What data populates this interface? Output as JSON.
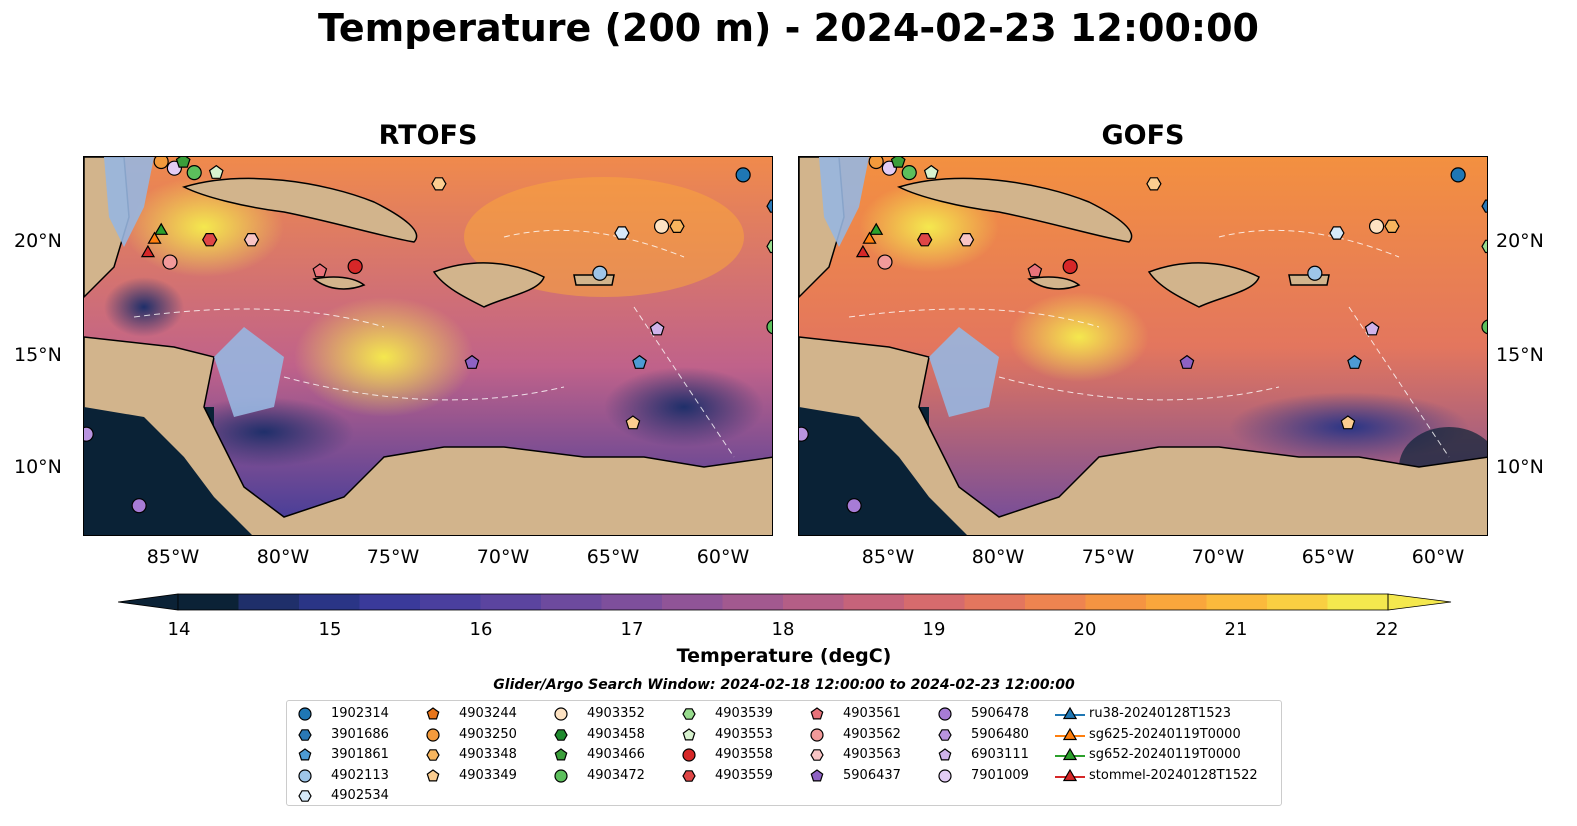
{
  "title": "Temperature (200 m) - 2024-02-23 12:00:00",
  "panels": [
    {
      "title": "RTOFS"
    },
    {
      "title": "GOFS"
    }
  ],
  "map_extent": {
    "lon": [
      -89.5,
      -58.2
    ],
    "lat": [
      7.0,
      24.0
    ]
  },
  "lat_ticks": [
    {
      "value": 20,
      "label": "20°N"
    },
    {
      "value": 15,
      "label": "15°N"
    },
    {
      "value": 10,
      "label": "10°N"
    }
  ],
  "lon_ticks": [
    {
      "value": -85,
      "label": "85°W"
    },
    {
      "value": -80,
      "label": "80°W"
    },
    {
      "value": -75,
      "label": "75°W"
    },
    {
      "value": -70,
      "label": "70°W"
    },
    {
      "value": -65,
      "label": "65°W"
    },
    {
      "value": -60,
      "label": "60°W"
    }
  ],
  "colors": {
    "land": "#d2b48c",
    "shelf": "#97b6e0",
    "deep_cold": "#0a2236",
    "warm": "#f7a040"
  },
  "colorbar": {
    "label": "Temperature (degC)",
    "min": 13.5,
    "max": 22.0,
    "ticks": [
      14,
      15,
      16,
      17,
      18,
      19,
      20,
      21,
      22
    ],
    "colors": [
      "#0b2236",
      "#162a4c",
      "#1f2f6a",
      "#2a3586",
      "#3a3a9a",
      "#4a3f9e",
      "#5b449f",
      "#6d4a9e",
      "#7e4f9c",
      "#905497",
      "#a2598f",
      "#b45e86",
      "#c6637a",
      "#d66b6d",
      "#e3765e",
      "#ee8450",
      "#f59442",
      "#f9a63c",
      "#fbba3c",
      "#f9cf42",
      "#f4e84e"
    ]
  },
  "legend": {
    "title": "Glider/Argo Search Window: 2024-02-18 12:00:00 to 2024-02-23 12:00:00",
    "columns": [
      [
        {
          "label": "1902314",
          "marker": "circle",
          "color": "#1f77b4"
        },
        {
          "label": "3901686",
          "marker": "hexagon",
          "color": "#2a78b6"
        },
        {
          "label": "3901861",
          "marker": "pentagon",
          "color": "#4d9bd4"
        },
        {
          "label": "4902113",
          "marker": "circle",
          "color": "#9ec5e8"
        },
        {
          "label": "4902534",
          "marker": "hexagon",
          "color": "#d6e9f8"
        }
      ],
      [
        {
          "label": "4903244",
          "marker": "pentagon",
          "color": "#e8751a"
        },
        {
          "label": "4903250",
          "marker": "circle",
          "color": "#f39a3c"
        },
        {
          "label": "4903348",
          "marker": "hexagon",
          "color": "#f7b55e"
        },
        {
          "label": "4903349",
          "marker": "pentagon",
          "color": "#fbcd90"
        }
      ],
      [
        {
          "label": "4903352",
          "marker": "circle",
          "color": "#fde2c2"
        },
        {
          "label": "4903458",
          "marker": "hexagon",
          "color": "#1f8a2e"
        },
        {
          "label": "4903466",
          "marker": "pentagon",
          "color": "#3a9e3a"
        },
        {
          "label": "4903472",
          "marker": "circle",
          "color": "#5cbf5c"
        }
      ],
      [
        {
          "label": "4903539",
          "marker": "hexagon",
          "color": "#98dc8e"
        },
        {
          "label": "4903553",
          "marker": "pentagon",
          "color": "#d8f2cf"
        },
        {
          "label": "4903558",
          "marker": "circle",
          "color": "#d62728"
        },
        {
          "label": "4903559",
          "marker": "hexagon",
          "color": "#df4646"
        }
      ],
      [
        {
          "label": "4903561",
          "marker": "pentagon",
          "color": "#e8727a"
        },
        {
          "label": "4903562",
          "marker": "circle",
          "color": "#f29a9a"
        },
        {
          "label": "4903563",
          "marker": "hexagon",
          "color": "#f8c4c4"
        },
        {
          "label": "5906437",
          "marker": "pentagon",
          "color": "#8e62c4"
        }
      ],
      [
        {
          "label": "5906478",
          "marker": "circle",
          "color": "#a77cd6"
        },
        {
          "label": "5906480",
          "marker": "hexagon",
          "color": "#b994e0"
        },
        {
          "label": "6903111",
          "marker": "pentagon",
          "color": "#cfb3ea"
        },
        {
          "label": "7901009",
          "marker": "circle",
          "color": "#e3cdf5"
        }
      ],
      [
        {
          "label": "ru38-20240128T1523",
          "marker": "triangle-line",
          "color": "#1f77b4"
        },
        {
          "label": "sg625-20240119T0000",
          "marker": "triangle-line",
          "color": "#ff7f0e"
        },
        {
          "label": "sg652-20240119T0000",
          "marker": "triangle-line",
          "color": "#2ca02c"
        },
        {
          "label": "stommel-20240128T1522",
          "marker": "triangle-line",
          "color": "#d62728"
        }
      ]
    ]
  },
  "map_markers": [
    {
      "lon": -86.0,
      "lat": 23.8,
      "marker": "circle",
      "color": "#f39a3c"
    },
    {
      "lon": -85.4,
      "lat": 23.5,
      "marker": "circle",
      "color": "#e3cdf5"
    },
    {
      "lon": -85.0,
      "lat": 23.8,
      "marker": "pentagon",
      "color": "#3a9e3a"
    },
    {
      "lon": -84.5,
      "lat": 23.3,
      "marker": "circle",
      "color": "#5cbf5c"
    },
    {
      "lon": -83.5,
      "lat": 23.3,
      "marker": "pentagon",
      "color": "#d8f2cf"
    },
    {
      "lon": -86.0,
      "lat": 20.7,
      "marker": "triangle",
      "color": "#2ca02c"
    },
    {
      "lon": -86.3,
      "lat": 20.3,
      "marker": "triangle",
      "color": "#ff7f0e"
    },
    {
      "lon": -86.6,
      "lat": 19.7,
      "marker": "triangle",
      "color": "#d62728"
    },
    {
      "lon": -85.6,
      "lat": 19.3,
      "marker": "circle",
      "color": "#f29a9a"
    },
    {
      "lon": -83.8,
      "lat": 20.3,
      "marker": "hexagon",
      "color": "#df4646"
    },
    {
      "lon": -81.9,
      "lat": 20.3,
      "marker": "hexagon",
      "color": "#f8c4c4"
    },
    {
      "lon": -78.8,
      "lat": 18.9,
      "marker": "pentagon",
      "color": "#e8727a"
    },
    {
      "lon": -77.2,
      "lat": 19.1,
      "marker": "circle",
      "color": "#d62728"
    },
    {
      "lon": -73.4,
      "lat": 22.8,
      "marker": "hexagon",
      "color": "#fbcd90"
    },
    {
      "lon": -65.1,
      "lat": 20.6,
      "marker": "hexagon",
      "color": "#d6e9f8"
    },
    {
      "lon": -63.3,
      "lat": 20.9,
      "marker": "circle",
      "color": "#fde2c2"
    },
    {
      "lon": -62.6,
      "lat": 20.9,
      "marker": "hexagon",
      "color": "#f7b55e"
    },
    {
      "lon": -59.6,
      "lat": 23.2,
      "marker": "circle",
      "color": "#1f77b4"
    },
    {
      "lon": -58.2,
      "lat": 21.8,
      "marker": "hexagon",
      "color": "#2a78b6"
    },
    {
      "lon": -58.2,
      "lat": 20.0,
      "marker": "hexagon",
      "color": "#98dc8e"
    },
    {
      "lon": -66.1,
      "lat": 18.8,
      "marker": "circle",
      "color": "#9ec5e8"
    },
    {
      "lon": -63.5,
      "lat": 16.3,
      "marker": "pentagon",
      "color": "#cfb3ea"
    },
    {
      "lon": -71.9,
      "lat": 14.8,
      "marker": "pentagon",
      "color": "#8e62c4"
    },
    {
      "lon": -64.3,
      "lat": 14.8,
      "marker": "pentagon",
      "color": "#4d9bd4"
    },
    {
      "lon": -58.2,
      "lat": 16.4,
      "marker": "circle",
      "color": "#5cbf5c"
    },
    {
      "lon": -64.6,
      "lat": 12.1,
      "marker": "pentagon",
      "color": "#fbcd90"
    },
    {
      "lon": -89.4,
      "lat": 11.6,
      "marker": "circle",
      "color": "#b994e0"
    },
    {
      "lon": -87.0,
      "lat": 8.4,
      "marker": "circle",
      "color": "#a77cd6"
    }
  ]
}
